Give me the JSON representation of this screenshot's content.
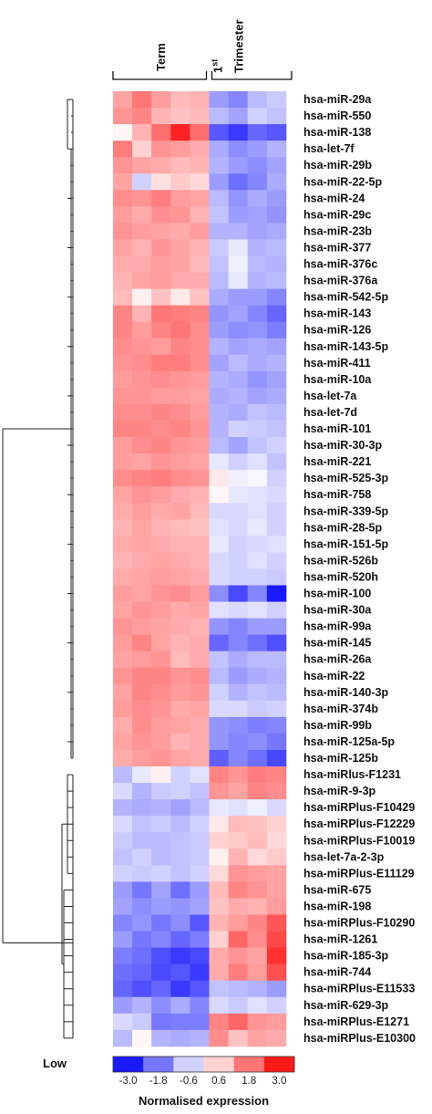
{
  "chart_data": {
    "type": "heatmap",
    "column_groups": [
      {
        "label": "Term",
        "columns": 5
      },
      {
        "label_main": "1",
        "label_sup": "st",
        "label_rest": "Trimester",
        "columns": 4
      }
    ],
    "rows": [
      "hsa-miR-29a",
      "hsa-miR-550",
      "hsa-miR-138",
      "hsa-let-7f",
      "hsa-miR-29b",
      "hsa-miR-22-5p",
      "hsa-miR-24",
      "hsa-miR-29c",
      "hsa-miR-23b",
      "hsa-miR-377",
      "hsa-miR-376c",
      "hsa-miR-376a",
      "hsa-miR-542-5p",
      "hsa-miR-143",
      "hsa-miR-126",
      "hsa-miR-143-5p",
      "hsa-miR-411",
      "hsa-miR-10a",
      "hsa-let-7a",
      "hsa-let-7d",
      "hsa-miR-101",
      "hsa-miR-30-3p",
      "hsa-miR-221",
      "hsa-miR-525-3p",
      "hsa-miR-758",
      "hsa-miR-339-5p",
      "hsa-miR-28-5p",
      "hsa-miR-151-5p",
      "hsa-miR-526b",
      "hsa-miR-520h",
      "hsa-miR-100",
      "hsa-miR-30a",
      "hsa-miR-99a",
      "hsa-miR-145",
      "hsa-miR-26a",
      "hsa-miR-22",
      "hsa-miR-140-3p",
      "hsa-miR-374b",
      "hsa-miR-99b",
      "hsa-miR-125a-5p",
      "hsa-miR-125b",
      "hsa-miRlus-F1231",
      "hsa-miR-9-3p",
      "hsa-miRPlus-F10429",
      "hsa-miRPlus-F12229",
      "hsa-miRPlus-F10019",
      "hsa-let-7a-2-3p",
      "hsa-miRPlus-E11129",
      "hsa-miR-675",
      "hsa-miR-198",
      "hsa-miRPlus-F10290",
      "hsa-miR-1261",
      "hsa-miR-185-3p",
      "hsa-miR-744",
      "hsa-miRPlus-E11533",
      "hsa-miR-629-3p",
      "hsa-miRPlus-E1271",
      "hsa-miRPlus-E10300"
    ],
    "values": [
      [
        1.2,
        1.8,
        1.3,
        0.9,
        1.0,
        -1.3,
        -1.6,
        -0.9,
        -0.7
      ],
      [
        1.4,
        1.6,
        1.0,
        0.8,
        0.9,
        -0.9,
        -1.2,
        -0.6,
        -0.8
      ],
      [
        0.1,
        1.0,
        1.9,
        2.9,
        1.9,
        -2.2,
        -2.6,
        -2.0,
        -2.2
      ],
      [
        1.7,
        0.6,
        1.4,
        1.3,
        1.1,
        -1.1,
        -1.5,
        -1.3,
        -1.0
      ],
      [
        1.4,
        1.2,
        1.1,
        0.9,
        1.0,
        -1.0,
        -1.3,
        -1.5,
        -1.2
      ],
      [
        1.2,
        -0.6,
        0.4,
        0.7,
        0.5,
        -1.3,
        -1.9,
        -1.6,
        -1.1
      ],
      [
        1.5,
        1.4,
        1.7,
        1.3,
        1.2,
        -0.9,
        -1.4,
        -1.1,
        -1.3
      ],
      [
        1.3,
        1.1,
        1.5,
        1.4,
        1.0,
        -0.8,
        -1.3,
        -1.2,
        -1.4
      ],
      [
        1.4,
        1.3,
        1.2,
        1.1,
        1.3,
        -1.0,
        -1.0,
        -1.2,
        -1.1
      ],
      [
        1.2,
        1.0,
        1.4,
        1.2,
        1.0,
        -0.7,
        -0.3,
        -1.0,
        -0.9
      ],
      [
        1.1,
        1.1,
        1.3,
        1.2,
        0.9,
        -0.8,
        -0.2,
        -0.9,
        -1.0
      ],
      [
        1.0,
        1.2,
        1.3,
        1.1,
        1.1,
        -0.9,
        -0.3,
        -1.0,
        -0.9
      ],
      [
        0.9,
        0.2,
        0.8,
        0.3,
        0.8,
        -1.1,
        -1.3,
        -1.3,
        -1.6
      ],
      [
        1.6,
        1.0,
        1.8,
        1.7,
        1.6,
        -1.4,
        -1.2,
        -1.6,
        -2.0
      ],
      [
        1.6,
        1.3,
        1.6,
        1.8,
        1.5,
        -1.3,
        -1.5,
        -1.4,
        -1.7
      ],
      [
        1.5,
        1.4,
        1.3,
        1.6,
        1.5,
        -1.0,
        -1.2,
        -1.1,
        -1.2
      ],
      [
        1.4,
        1.5,
        1.7,
        1.7,
        1.5,
        -1.2,
        -0.9,
        -1.1,
        -1.0
      ],
      [
        1.3,
        1.4,
        1.5,
        1.4,
        1.3,
        -1.0,
        -1.1,
        -1.4,
        -1.2
      ],
      [
        1.4,
        1.4,
        1.3,
        1.3,
        1.2,
        -1.1,
        -1.0,
        -1.2,
        -1.1
      ],
      [
        1.5,
        1.5,
        1.6,
        1.5,
        1.3,
        -1.0,
        -1.1,
        -0.8,
        -0.9
      ],
      [
        1.6,
        1.6,
        1.5,
        1.6,
        1.4,
        -1.0,
        -0.6,
        -0.7,
        -0.8
      ],
      [
        1.3,
        1.5,
        1.6,
        1.4,
        1.3,
        -0.9,
        -1.2,
        -0.8,
        -0.6
      ],
      [
        1.3,
        1.2,
        1.4,
        1.3,
        1.2,
        -0.3,
        -0.6,
        -0.4,
        -0.8
      ],
      [
        1.5,
        1.6,
        1.7,
        1.5,
        1.4,
        0.3,
        -0.2,
        -0.1,
        -0.6
      ],
      [
        1.2,
        1.4,
        1.3,
        1.1,
        1.0,
        0.1,
        -0.3,
        -0.4,
        -0.5
      ],
      [
        1.1,
        1.3,
        1.1,
        1.2,
        0.9,
        -0.5,
        -0.5,
        -0.4,
        -0.6
      ],
      [
        1.0,
        1.2,
        1.0,
        0.9,
        0.8,
        -0.4,
        -0.5,
        -0.3,
        -0.6
      ],
      [
        1.1,
        1.2,
        1.1,
        1.0,
        1.0,
        -0.3,
        -0.6,
        -0.5,
        -0.4
      ],
      [
        1.0,
        1.1,
        1.2,
        1.1,
        1.0,
        -0.5,
        -0.6,
        -0.4,
        -0.6
      ],
      [
        1.1,
        1.2,
        1.3,
        1.2,
        1.1,
        -0.5,
        -0.6,
        -0.6,
        -0.7
      ],
      [
        1.3,
        1.2,
        1.4,
        1.5,
        1.3,
        -1.5,
        -2.4,
        -1.6,
        -3.0
      ],
      [
        1.2,
        1.4,
        1.3,
        1.1,
        1.2,
        -0.4,
        -0.5,
        -0.4,
        -0.6
      ],
      [
        1.4,
        1.3,
        1.2,
        1.1,
        1.0,
        -1.4,
        -1.6,
        -1.3,
        -1.3
      ],
      [
        1.3,
        1.6,
        1.2,
        1.0,
        1.1,
        -2.0,
        -1.6,
        -1.9,
        -2.3
      ],
      [
        1.2,
        1.3,
        1.4,
        0.9,
        1.1,
        -0.8,
        -1.1,
        -0.9,
        -0.9
      ],
      [
        1.4,
        1.6,
        1.6,
        1.4,
        1.5,
        -0.9,
        -1.3,
        -1.1,
        -1.0
      ],
      [
        1.2,
        1.6,
        1.5,
        1.3,
        1.4,
        -0.6,
        -1.0,
        -0.8,
        -0.9
      ],
      [
        1.3,
        1.5,
        1.4,
        1.1,
        1.2,
        -0.5,
        -0.5,
        -0.7,
        -0.6
      ],
      [
        1.1,
        1.5,
        1.3,
        1.2,
        1.1,
        -1.4,
        -1.5,
        -1.7,
        -1.6
      ],
      [
        1.2,
        1.4,
        1.3,
        1.0,
        1.1,
        -1.4,
        -1.6,
        -1.5,
        -1.8
      ],
      [
        1.1,
        1.3,
        1.4,
        1.2,
        1.1,
        -2.1,
        -1.6,
        -1.9,
        -2.4
      ],
      [
        -0.9,
        -0.3,
        0.2,
        -0.6,
        -0.4,
        1.6,
        1.4,
        1.7,
        1.6
      ],
      [
        -0.5,
        -1.0,
        -0.7,
        -0.6,
        -0.8,
        1.4,
        1.2,
        1.6,
        1.5
      ],
      [
        -1.0,
        -1.1,
        -1.0,
        -1.2,
        -0.9,
        -0.3,
        -0.4,
        -0.2,
        -0.5
      ],
      [
        -0.5,
        -0.8,
        -0.7,
        -0.9,
        -0.6,
        0.3,
        0.9,
        0.8,
        0.6
      ],
      [
        -0.7,
        -0.9,
        -0.9,
        -0.8,
        -0.7,
        0.6,
        0.7,
        0.9,
        0.5
      ],
      [
        -0.8,
        -0.6,
        -0.9,
        -0.8,
        -0.7,
        0.2,
        1.0,
        0.5,
        0.7
      ],
      [
        -0.6,
        -0.7,
        -0.6,
        -0.8,
        -0.6,
        0.5,
        1.4,
        1.3,
        1.2
      ],
      [
        -1.3,
        -1.8,
        -1.2,
        -1.9,
        -1.3,
        0.9,
        1.6,
        1.4,
        1.2
      ],
      [
        -1.2,
        -1.5,
        -1.3,
        -1.4,
        -1.2,
        0.8,
        1.1,
        1.0,
        1.3
      ],
      [
        -1.6,
        -1.4,
        -1.8,
        -1.5,
        -2.2,
        1.0,
        1.3,
        1.6,
        2.2
      ],
      [
        -1.3,
        -1.8,
        -1.6,
        -2.0,
        -1.7,
        0.6,
        2.0,
        1.5,
        2.4
      ],
      [
        -1.7,
        -1.9,
        -2.3,
        -2.6,
        -2.4,
        1.1,
        1.4,
        1.2,
        2.7
      ],
      [
        -1.9,
        -2.0,
        -2.4,
        -2.2,
        -2.6,
        1.1,
        1.7,
        1.3,
        2.3
      ],
      [
        -2.0,
        -2.3,
        -2.0,
        -2.6,
        -2.2,
        -0.8,
        -0.9,
        -1.0,
        -1.3
      ],
      [
        -1.3,
        -1.0,
        -1.5,
        -1.1,
        -1.6,
        -0.5,
        -0.7,
        -0.4,
        -0.6
      ],
      [
        -0.5,
        -0.7,
        -1.8,
        -1.7,
        -1.7,
        1.6,
        2.0,
        1.4,
        1.3
      ],
      [
        -0.9,
        0.1,
        -1.0,
        -1.1,
        -1.0,
        1.5,
        0.8,
        1.2,
        1.1
      ]
    ],
    "colorscale": {
      "min": -3.0,
      "max": 3.0,
      "low_color": "#1a1aff",
      "mid_color": "#ffffff",
      "high_color": "#ff1a1a",
      "ticks": [
        "-3.0",
        "-1.8",
        "-0.6",
        "0.6",
        "1.8",
        "3.0"
      ],
      "steps": [
        -3.0,
        -1.8,
        -0.6,
        0.6,
        1.8,
        3.0
      ]
    },
    "legend": {
      "low_label": "Low",
      "title": "Normalised expression"
    },
    "dendrogram": "hierarchical clustering (left side)"
  }
}
